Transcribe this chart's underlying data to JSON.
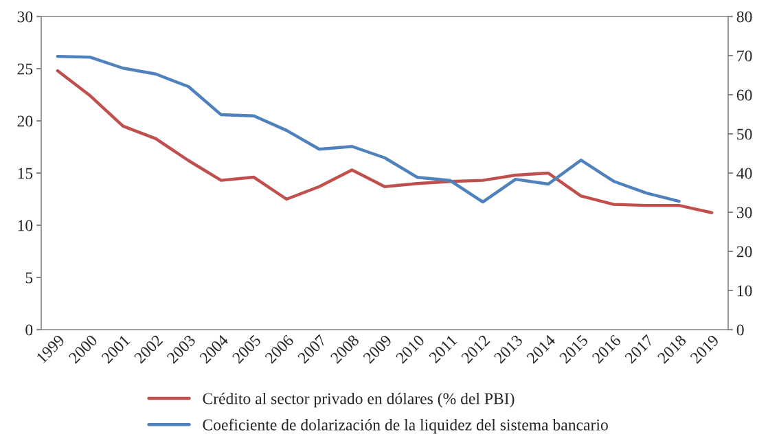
{
  "chart_data": {
    "type": "line",
    "categories": [
      "1999",
      "2000",
      "2001",
      "2002",
      "2003",
      "2004",
      "2005",
      "2006",
      "2007",
      "2008",
      "2009",
      "2010",
      "2011",
      "2012",
      "2013",
      "2014",
      "2015",
      "2016",
      "2017",
      "2018",
      "2019"
    ],
    "series": [
      {
        "name": "Crédito al sector privado en dólares (% del PBI)",
        "color": "#c0504d",
        "values": [
          24.8,
          22.4,
          19.5,
          18.3,
          16.2,
          14.3,
          14.6,
          12.5,
          13.7,
          15.3,
          13.7,
          14.0,
          14.2,
          14.3,
          14.8,
          15.0,
          12.8,
          12.0,
          11.9,
          11.9,
          11.2
        ]
      },
      {
        "name": "Coeficiente de dolarización de la liquidez del sistema bancario",
        "color": "#4f81bd",
        "axis": "y2",
        "values": [
          69.8,
          69.6,
          66.8,
          65.3,
          62.1,
          54.9,
          54.6,
          50.9,
          46.1,
          46.8,
          43.9,
          38.9,
          38.1,
          32.6,
          38.4,
          37.2,
          43.3,
          37.9,
          34.9,
          32.8,
          null
        ]
      }
    ],
    "ylim": [
      0,
      30
    ],
    "yticks": [
      0,
      5,
      10,
      15,
      20,
      25,
      30
    ],
    "y2lim": [
      0,
      80
    ],
    "y2ticks": [
      0,
      10,
      20,
      30,
      40,
      50,
      60,
      70,
      80
    ],
    "grid": false,
    "legend": "bottom",
    "marker": "none",
    "line_style": "solid"
  }
}
